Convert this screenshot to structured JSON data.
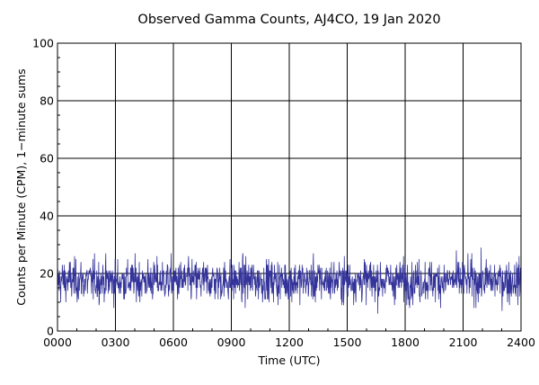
{
  "chart_data": {
    "type": "line",
    "title": "Observed Gamma Counts, AJ4CO, 19 Jan 2020",
    "xlabel": "Time (UTC)",
    "ylabel": "Counts per Minute (CPM), 1−minute sums",
    "x_tick_labels": [
      "0000",
      "0300",
      "0600",
      "0900",
      "1200",
      "1500",
      "1800",
      "2100",
      "2400"
    ],
    "x_range_minutes": [
      0,
      1440
    ],
    "ylim": [
      0,
      100
    ],
    "y_ticks": [
      0,
      20,
      40,
      60,
      80,
      100
    ],
    "grid": true,
    "series": [
      {
        "color": "#33339a",
        "sampling_interval_minutes": 1,
        "mean_cpm": 17.5,
        "summary": {
          "min_cpm": 3,
          "max_cpm": 30,
          "typical_range_cpm": [
            10,
            25
          ]
        }
      }
    ]
  }
}
